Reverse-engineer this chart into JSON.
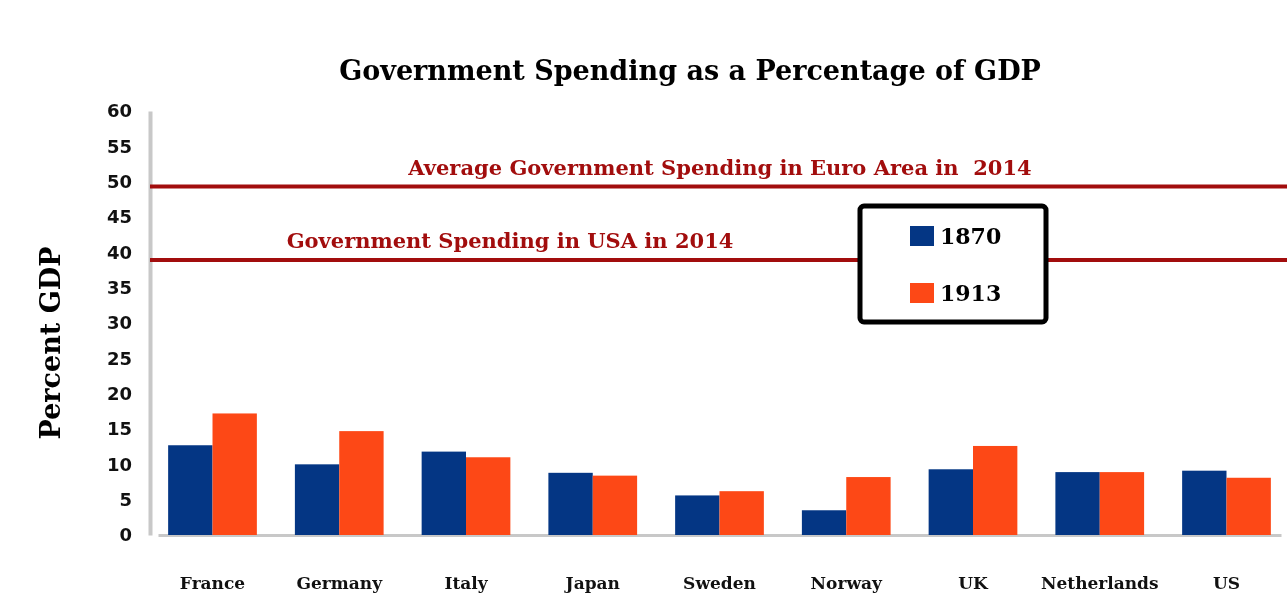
{
  "chart_data": {
    "type": "bar",
    "title": "Government Spending as a Percentage of GDP",
    "ylabel": "Percent GDP",
    "categories": [
      "France",
      "Germany",
      "Italy",
      "Japan",
      "Sweden",
      "Norway",
      "UK",
      "Netherlands",
      "US"
    ],
    "series": [
      {
        "name": "1870",
        "color": "#043684",
        "values": [
          12.7,
          10.0,
          11.8,
          8.8,
          5.6,
          3.5,
          9.3,
          8.9,
          9.1
        ]
      },
      {
        "name": "1913",
        "color": "#fd4816",
        "values": [
          17.2,
          14.7,
          11.0,
          8.4,
          6.2,
          8.2,
          12.6,
          8.9,
          8.1
        ]
      }
    ],
    "ylim": [
      0,
      60
    ],
    "yticks": [
      0,
      5,
      10,
      15,
      20,
      25,
      30,
      35,
      40,
      45,
      50,
      55,
      60
    ],
    "grid": false,
    "legend": "top right",
    "ref_lines": [
      {
        "axis": "y",
        "value": 49.3,
        "label": "Average Government Spending in Euro Area in  2014",
        "color": "#a20d0d"
      },
      {
        "axis": "y",
        "value": 38.9,
        "label": "Government Spending in USA in 2014",
        "color": "#a20d0d"
      }
    ]
  }
}
